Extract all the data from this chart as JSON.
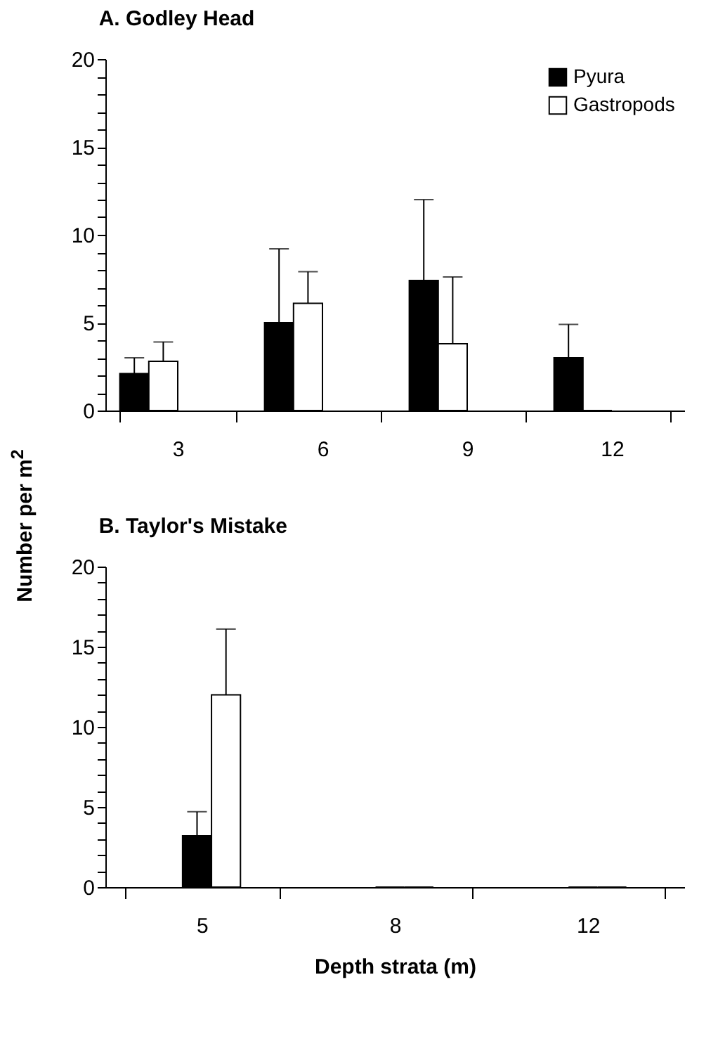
{
  "chart_data": [
    {
      "type": "bar",
      "title": "A. Godley Head",
      "ylabel": "Number per m$^{2}$",
      "categories": [
        "3",
        "6",
        "9",
        "12"
      ],
      "legend": "top right",
      "grid": false,
      "ylim": [
        0,
        20
      ],
      "yticks": [
        0,
        {
          "value": 1,
          "label": null
        },
        {
          "value": 2,
          "label": null
        },
        {
          "value": 3,
          "label": null
        },
        {
          "value": 4,
          "label": null
        },
        5,
        {
          "value": 6,
          "label": null
        },
        {
          "value": 7,
          "label": null
        },
        {
          "value": 8,
          "label": null
        },
        {
          "value": 9,
          "label": null
        },
        10,
        {
          "value": 11,
          "label": null
        },
        {
          "value": 12,
          "label": null
        },
        {
          "value": 13,
          "label": null
        },
        {
          "value": 14,
          "label": null
        },
        15,
        {
          "value": 16,
          "label": null
        },
        {
          "value": 17,
          "label": null
        },
        {
          "value": 18,
          "label": null
        },
        {
          "value": 19,
          "label": null
        },
        20
      ],
      "series": [
        {
          "name": "Pyura",
          "color": "#000000",
          "values": [
            2.1,
            5.0,
            7.4,
            3.0
          ],
          "errors": [
            [
              2.1,
              3.0
            ],
            [
              5.0,
              9.2
            ],
            [
              7.4,
              12.0
            ],
            [
              3.0,
              4.9
            ]
          ]
        },
        {
          "name": "Gastropods",
          "color": "#ffffff",
          "values": [
            2.8,
            6.1,
            3.8,
            0
          ],
          "errors": [
            [
              2.8,
              3.9
            ],
            [
              6.1,
              7.9
            ],
            [
              3.8,
              7.6
            ],
            null
          ]
        }
      ]
    },
    {
      "type": "bar",
      "title": "B. Taylor's Mistake",
      "xlabel": "Depth strata (m)",
      "categories": [
        "5",
        "8",
        "12"
      ],
      "grid": false,
      "ylim": [
        0,
        20
      ],
      "yticks": [
        0,
        {
          "value": 1,
          "label": null
        },
        {
          "value": 2,
          "label": null
        },
        {
          "value": 3,
          "label": null
        },
        {
          "value": 4,
          "label": null
        },
        5,
        {
          "value": 6,
          "label": null
        },
        {
          "value": 7,
          "label": null
        },
        {
          "value": 8,
          "label": null
        },
        {
          "value": 9,
          "label": null
        },
        10,
        {
          "value": 11,
          "label": null
        },
        {
          "value": 12,
          "label": null
        },
        {
          "value": 13,
          "label": null
        },
        {
          "value": 14,
          "label": null
        },
        15,
        {
          "value": 16,
          "label": null
        },
        {
          "value": 17,
          "label": null
        },
        {
          "value": 18,
          "label": null
        },
        {
          "value": 19,
          "label": null
        },
        20
      ],
      "series": [
        {
          "color": "#000000",
          "values": [
            3.2,
            0,
            0
          ],
          "errors": [
            [
              3.2,
              4.7
            ],
            null,
            null
          ]
        },
        {
          "color": "#ffffff",
          "values": [
            12.0,
            0,
            0
          ],
          "errors": [
            [
              12.0,
              16.1
            ],
            null,
            null
          ]
        }
      ]
    }
  ]
}
